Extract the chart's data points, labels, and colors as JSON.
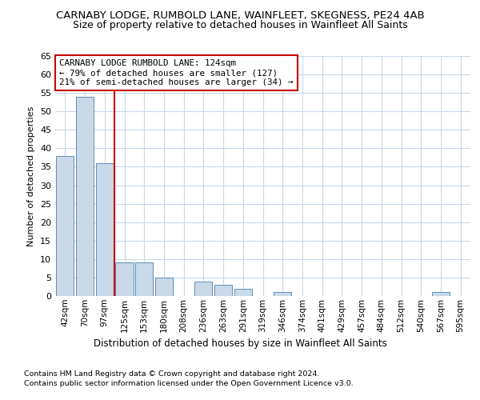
{
  "title1": "CARNABY LODGE, RUMBOLD LANE, WAINFLEET, SKEGNESS, PE24 4AB",
  "title2": "Size of property relative to detached houses in Wainfleet All Saints",
  "xlabel": "Distribution of detached houses by size in Wainfleet All Saints",
  "ylabel": "Number of detached properties",
  "annotation_lines": [
    "CARNABY LODGE RUMBOLD LANE: 124sqm",
    "← 79% of detached houses are smaller (127)",
    "21% of semi-detached houses are larger (34) →"
  ],
  "footnote1": "Contains HM Land Registry data © Crown copyright and database right 2024.",
  "footnote2": "Contains public sector information licensed under the Open Government Licence v3.0.",
  "categories": [
    "42sqm",
    "70sqm",
    "97sqm",
    "125sqm",
    "153sqm",
    "180sqm",
    "208sqm",
    "236sqm",
    "263sqm",
    "291sqm",
    "319sqm",
    "346sqm",
    "374sqm",
    "401sqm",
    "429sqm",
    "457sqm",
    "484sqm",
    "512sqm",
    "540sqm",
    "567sqm",
    "595sqm"
  ],
  "values": [
    38,
    54,
    36,
    9,
    9,
    5,
    0,
    4,
    3,
    2,
    0,
    1,
    0,
    0,
    0,
    0,
    0,
    0,
    0,
    1,
    0
  ],
  "bar_color": "#c9d9e8",
  "bar_edge_color": "#5b8db8",
  "vline_x": 2.5,
  "vline_color": "#cc0000",
  "annotation_box_color": "#ffffff",
  "annotation_box_edge": "#cc0000",
  "grid_color": "#c8d8e8",
  "background_color": "#ffffff",
  "ylim": [
    0,
    65
  ],
  "yticks": [
    0,
    5,
    10,
    15,
    20,
    25,
    30,
    35,
    40,
    45,
    50,
    55,
    60,
    65
  ]
}
